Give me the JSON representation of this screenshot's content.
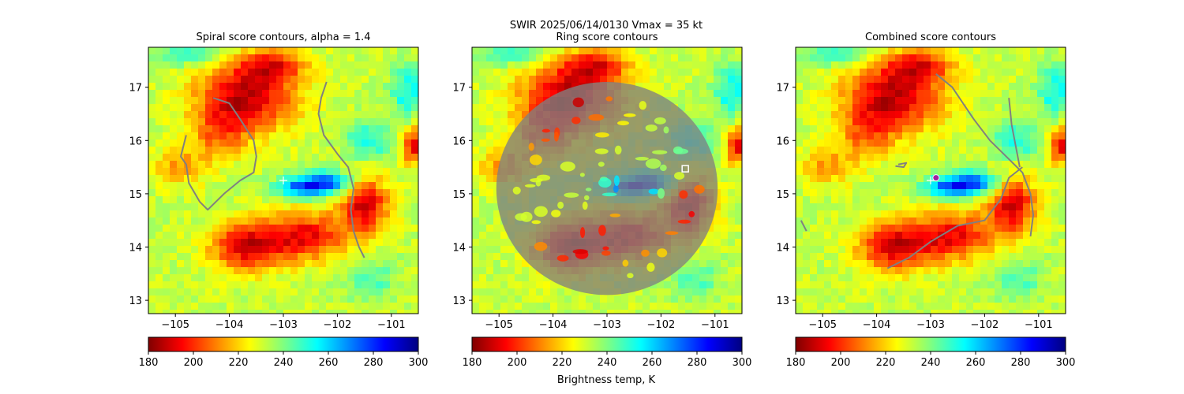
{
  "suptitle_line1": "SWIR  2025/06/14/0130    Vmax = 35 kt",
  "colorbar_label": "Brightness temp, K",
  "colormap_stops": [
    "#800000",
    "#ff0000",
    "#ff8000",
    "#ffff00",
    "#80ff80",
    "#00ffff",
    "#0080ff",
    "#0000ff",
    "#000080"
  ],
  "contour_color": "#808080",
  "chart_data": [
    {
      "type": "heatmap",
      "title": "Spiral score contours, alpha =  1.4",
      "xlim": [
        -105.5,
        -100.5
      ],
      "ylim": [
        12.75,
        17.75
      ],
      "xticks": [
        -105,
        -104,
        -103,
        -102,
        -101
      ],
      "xtick_labels": [
        "−105",
        "−104",
        "−103",
        "−102",
        "−101"
      ],
      "yticks": [
        13,
        14,
        15,
        16,
        17
      ],
      "ytick_labels": [
        "13",
        "14",
        "15",
        "16",
        "17"
      ],
      "colorbar": {
        "range": [
          180,
          300
        ],
        "ticks": [
          180,
          200,
          220,
          240,
          260,
          280,
          300
        ],
        "tick_labels": [
          "180",
          "200",
          "220",
          "240",
          "260",
          "280",
          "300"
        ]
      },
      "markers": [
        {
          "label": "center",
          "shape": "plus",
          "x": -103.0,
          "y": 15.25,
          "color": "#ffffff"
        }
      ],
      "contours": [
        [
          [
            -104.3,
            16.8
          ],
          [
            -104.0,
            16.7
          ],
          [
            -103.8,
            16.4
          ],
          [
            -103.55,
            16.0
          ],
          [
            -103.5,
            15.7
          ],
          [
            -103.55,
            15.4
          ],
          [
            -103.8,
            15.25
          ],
          [
            -104.1,
            15.0
          ],
          [
            -104.4,
            14.7
          ],
          [
            -104.55,
            14.85
          ],
          [
            -104.75,
            15.2
          ],
          [
            -104.8,
            15.55
          ],
          [
            -104.9,
            15.7
          ],
          [
            -104.8,
            16.1
          ]
        ],
        [
          [
            -102.2,
            17.1
          ],
          [
            -102.3,
            16.8
          ],
          [
            -102.35,
            16.5
          ],
          [
            -102.25,
            16.1
          ],
          [
            -102.0,
            15.75
          ],
          [
            -101.8,
            15.5
          ],
          [
            -101.7,
            15.1
          ],
          [
            -101.75,
            14.7
          ],
          [
            -101.7,
            14.3
          ],
          [
            -101.6,
            14.0
          ],
          [
            -101.5,
            13.8
          ]
        ]
      ]
    },
    {
      "type": "heatmap",
      "title": "Ring score contours",
      "xlim": [
        -105.5,
        -100.5
      ],
      "ylim": [
        12.75,
        17.75
      ],
      "xticks": [
        -105,
        -104,
        -103,
        -102,
        -101
      ],
      "xtick_labels": [
        "−105",
        "−104",
        "−103",
        "−102",
        "−101"
      ],
      "yticks": [
        13,
        14,
        15,
        16,
        17
      ],
      "ytick_labels": [
        "13",
        "14",
        "15",
        "16",
        "17"
      ],
      "colorbar": {
        "range": [
          180,
          300
        ],
        "ticks": [
          180,
          200,
          220,
          240,
          260,
          280,
          300
        ],
        "tick_labels": [
          "180",
          "200",
          "220",
          "240",
          "260",
          "280",
          "300"
        ]
      },
      "markers": [
        {
          "label": "ring center",
          "shape": "square",
          "x": -101.55,
          "y": 15.47,
          "color": "#ffffff"
        }
      ],
      "ring_region": {
        "center_x": -103.0,
        "center_y": 15.1,
        "radius_x": 2.05,
        "radius_y": 2.0
      }
    },
    {
      "type": "heatmap",
      "title": "Combined score contours",
      "xlim": [
        -105.5,
        -100.5
      ],
      "ylim": [
        12.75,
        17.75
      ],
      "xticks": [
        -105,
        -104,
        -103,
        -102,
        -101
      ],
      "xtick_labels": [
        "−105",
        "−104",
        "−103",
        "−102",
        "−101"
      ],
      "yticks": [
        13,
        14,
        15,
        16,
        17
      ],
      "ytick_labels": [
        "13",
        "14",
        "15",
        "16",
        "17"
      ],
      "colorbar": {
        "range": [
          180,
          300
        ],
        "ticks": [
          180,
          200,
          220,
          240,
          260,
          280,
          300
        ],
        "tick_labels": [
          "180",
          "200",
          "220",
          "240",
          "260",
          "280",
          "300"
        ]
      },
      "markers": [
        {
          "label": "center",
          "shape": "plus",
          "x": -103.0,
          "y": 15.25,
          "color": "#ffffff"
        },
        {
          "label": "combined center",
          "shape": "circle",
          "x": -102.9,
          "y": 15.3,
          "color": "#a020a0"
        }
      ],
      "contours": [
        [
          [
            -102.9,
            17.25
          ],
          [
            -102.6,
            17.0
          ],
          [
            -102.4,
            16.7
          ],
          [
            -102.2,
            16.4
          ],
          [
            -101.9,
            16.0
          ],
          [
            -101.5,
            15.6
          ],
          [
            -101.3,
            15.4
          ],
          [
            -101.15,
            15.0
          ],
          [
            -101.1,
            14.6
          ],
          [
            -101.15,
            14.2
          ]
        ],
        [
          [
            -105.4,
            14.5
          ],
          [
            -105.3,
            14.3
          ]
        ],
        [
          [
            -103.8,
            13.6
          ],
          [
            -103.4,
            13.8
          ],
          [
            -103.0,
            14.1
          ],
          [
            -102.5,
            14.4
          ],
          [
            -102.0,
            14.5
          ],
          [
            -101.7,
            14.9
          ],
          [
            -101.55,
            15.3
          ],
          [
            -101.3,
            15.5
          ]
        ],
        [
          [
            -101.55,
            16.8
          ],
          [
            -101.5,
            16.3
          ],
          [
            -101.35,
            15.5
          ]
        ],
        [
          [
            -103.6,
            15.55
          ],
          [
            -103.45,
            15.58
          ],
          [
            -103.5,
            15.5
          ],
          [
            -103.65,
            15.52
          ]
        ]
      ]
    }
  ]
}
